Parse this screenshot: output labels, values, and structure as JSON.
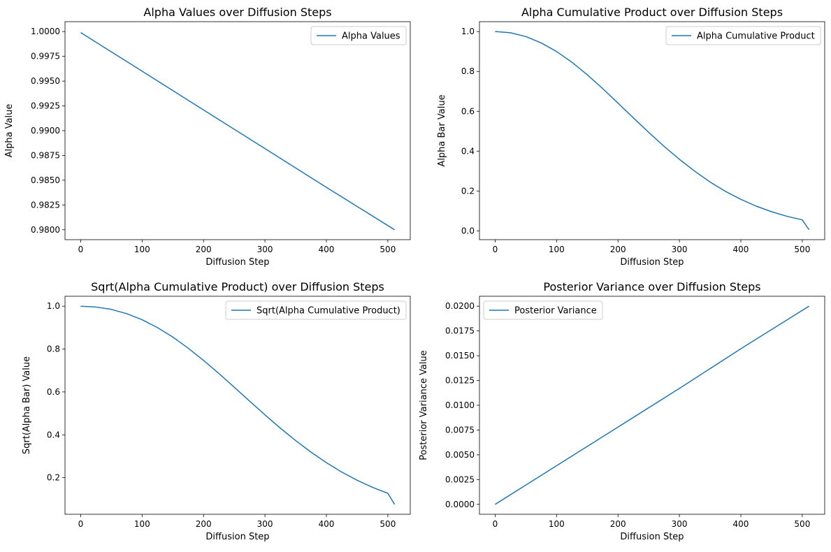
{
  "chart_data": [
    {
      "type": "line",
      "title": "Alpha Values over Diffusion Steps",
      "xlabel": "Diffusion Step",
      "ylabel": "Alpha Value",
      "xlim": [
        -25.55,
        536.55
      ],
      "ylim": [
        0.979,
        1.001
      ],
      "xticks": [
        0,
        100,
        200,
        300,
        400,
        500
      ],
      "yticks": [
        0.98,
        0.9825,
        0.985,
        0.9875,
        0.99,
        0.9925,
        0.995,
        0.9975,
        1.0
      ],
      "yticklabels": [
        "0.9800",
        "0.9825",
        "0.9850",
        "0.9875",
        "0.9900",
        "0.9925",
        "0.9950",
        "0.9975",
        "1.0000"
      ],
      "legend_position": "upper-right",
      "grid": false,
      "series": [
        {
          "name": "Alpha Values",
          "color": "#1f77b4",
          "x": [
            0,
            100,
            200,
            300,
            400,
            511
          ],
          "y": [
            0.9999,
            0.996,
            0.99209,
            0.98819,
            0.98428,
            0.98
          ]
        }
      ]
    },
    {
      "type": "line",
      "title": "Alpha Cumulative Product over Diffusion Steps",
      "xlabel": "Diffusion Step",
      "ylabel": "Alpha Bar Value",
      "xlim": [
        -25.55,
        536.55
      ],
      "ylim": [
        -0.0443,
        1.0497
      ],
      "xticks": [
        0,
        100,
        200,
        300,
        400,
        500
      ],
      "yticks": [
        0.0,
        0.2,
        0.4,
        0.6,
        0.8,
        1.0
      ],
      "yticklabels": [
        "0.0",
        "0.2",
        "0.4",
        "0.6",
        "0.8",
        "1.0"
      ],
      "legend_position": "upper-right",
      "grid": false,
      "series": [
        {
          "name": "Alpha Cumulative Product",
          "color": "#1f77b4",
          "x": [
            0,
            25,
            50,
            75,
            100,
            125,
            150,
            175,
            200,
            225,
            250,
            275,
            300,
            325,
            350,
            375,
            400,
            425,
            450,
            475,
            500,
            511
          ],
          "y": [
            1.0,
            0.994,
            0.975,
            0.943,
            0.9,
            0.846,
            0.783,
            0.714,
            0.641,
            0.567,
            0.494,
            0.424,
            0.359,
            0.299,
            0.245,
            0.198,
            0.158,
            0.124,
            0.096,
            0.073,
            0.055,
            0.0057
          ]
        }
      ]
    },
    {
      "type": "line",
      "title": "Sqrt(Alpha Cumulative Product) over Diffusion Steps",
      "xlabel": "Diffusion Step",
      "ylabel": "Sqrt(Alpha Bar) Value",
      "xlim": [
        -25.55,
        536.55
      ],
      "ylim": [
        0.0292,
        1.0463
      ],
      "xticks": [
        0,
        100,
        200,
        300,
        400,
        500
      ],
      "yticks": [
        0.2,
        0.4,
        0.6,
        0.8,
        1.0
      ],
      "yticklabels": [
        "0.2",
        "0.4",
        "0.6",
        "0.8",
        "1.0"
      ],
      "legend_position": "upper-right",
      "grid": false,
      "series": [
        {
          "name": "Sqrt(Alpha Cumulative Product)",
          "color": "#1f77b4",
          "x": [
            0,
            25,
            50,
            75,
            100,
            125,
            150,
            175,
            200,
            225,
            250,
            275,
            300,
            325,
            350,
            375,
            400,
            425,
            450,
            475,
            500,
            511
          ],
          "y": [
            1.0,
            0.996,
            0.985,
            0.965,
            0.937,
            0.9,
            0.856,
            0.804,
            0.747,
            0.686,
            0.622,
            0.557,
            0.493,
            0.431,
            0.373,
            0.319,
            0.27,
            0.226,
            0.188,
            0.155,
            0.127,
            0.0755
          ]
        }
      ]
    },
    {
      "type": "line",
      "title": "Posterior Variance over Diffusion Steps",
      "xlabel": "Diffusion Step",
      "ylabel": "Posterior Variance Value",
      "xlim": [
        -25.55,
        536.55
      ],
      "ylim": [
        -0.001,
        0.021
      ],
      "xticks": [
        0,
        100,
        200,
        300,
        400,
        500
      ],
      "yticks": [
        0.0,
        0.0025,
        0.005,
        0.0075,
        0.01,
        0.0125,
        0.015,
        0.0175,
        0.02
      ],
      "yticklabels": [
        "0.0000",
        "0.0025",
        "0.0050",
        "0.0075",
        "0.0100",
        "0.0125",
        "0.0150",
        "0.0175",
        "0.0200"
      ],
      "legend_position": "upper-left",
      "grid": false,
      "series": [
        {
          "name": "Posterior Variance",
          "color": "#1f77b4",
          "x": [
            0,
            100,
            200,
            300,
            400,
            511
          ],
          "y": [
            0.0,
            0.0039,
            0.0078,
            0.0117,
            0.0157,
            0.02
          ]
        }
      ]
    }
  ]
}
